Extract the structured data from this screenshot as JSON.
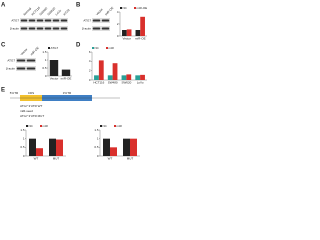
{
  "panels": {
    "A": {
      "letter": "A",
      "lanes": [
        "Normal",
        "HCT116",
        "SW480",
        "SW620",
        "LoVo",
        "HT29"
      ],
      "rows": [
        "ATG7",
        "β-actin"
      ]
    },
    "B": {
      "letter": "B",
      "lanes": [
        "Vector",
        "miR-OE"
      ],
      "rows": [
        "ATG7",
        "β-actin"
      ]
    },
    "C": {
      "letter": "C",
      "lanes": [
        "Vector",
        "miR-OE"
      ],
      "rows": [
        "ATG7",
        "β-actin"
      ]
    },
    "D": {
      "letter": "D"
    },
    "E": {
      "letter": "E",
      "seq": [
        "ATG7 3'UTR WT",
        "miR-seed",
        "ATG7 3'UTR MUT"
      ],
      "boxes": [
        "5'UTR",
        "CDS",
        "3'UTR"
      ]
    }
  },
  "chart_data": [
    {
      "type": "bar",
      "categories": [
        "Vector",
        "miR-OE"
      ],
      "series": [
        {
          "name": "NC",
          "color": "#222222",
          "values": [
            1.0,
            1.0
          ]
        },
        {
          "name": "miR-OE",
          "color": "#d9302c",
          "values": [
            1.1,
            3.2
          ]
        }
      ],
      "ylim": [
        0,
        4
      ],
      "yticks": [
        0,
        2,
        4
      ]
    },
    {
      "type": "bar",
      "categories": [
        "Vector",
        "miR-OE"
      ],
      "series": [
        {
          "name": "ATG7",
          "color": "#222222",
          "values": [
            1.0,
            0.4
          ]
        }
      ],
      "ylim": [
        0,
        1.5
      ],
      "yticks": [
        0,
        0.5,
        1,
        1.5
      ]
    },
    {
      "type": "bar",
      "categories": [
        "HCT116",
        "SW480",
        "SW620",
        "LoVo"
      ],
      "series": [
        {
          "name": "NC",
          "color": "#2aa198",
          "values": [
            1.0,
            1.0,
            1.0,
            1.0
          ]
        },
        {
          "name": "miR",
          "color": "#d9302c",
          "values": [
            4.2,
            3.6,
            1.2,
            1.1
          ]
        }
      ],
      "ylim": [
        0,
        6
      ],
      "yticks": [
        0,
        2,
        4,
        6
      ]
    },
    {
      "type": "bar",
      "categories": [
        "WT",
        "MUT"
      ],
      "series": [
        {
          "name": "NC",
          "color": "#222222",
          "values": [
            1.0,
            1.0
          ]
        },
        {
          "name": "miR",
          "color": "#d9302c",
          "values": [
            0.45,
            0.95
          ]
        }
      ],
      "ylim": [
        0,
        1.5
      ],
      "yticks": [
        0,
        0.5,
        1,
        1.5
      ]
    },
    {
      "type": "bar",
      "categories": [
        "WT",
        "MUT"
      ],
      "series": [
        {
          "name": "NC",
          "color": "#222222",
          "values": [
            1.0,
            1.0
          ]
        },
        {
          "name": "miR",
          "color": "#d9302c",
          "values": [
            0.5,
            1.0
          ]
        }
      ],
      "ylim": [
        0,
        1.5
      ],
      "yticks": [
        0,
        0.5,
        1,
        1.5
      ]
    }
  ]
}
